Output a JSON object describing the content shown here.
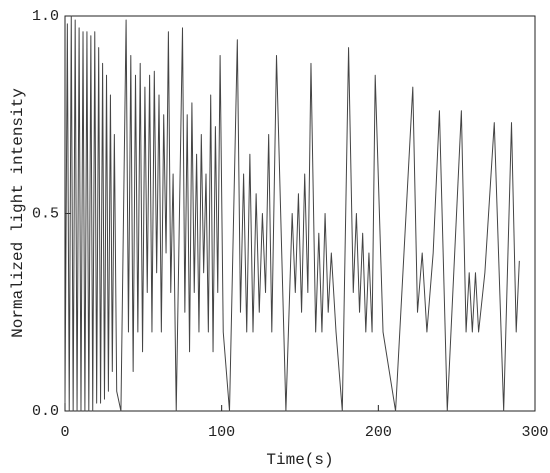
{
  "chart_data": {
    "type": "line",
    "x_label": "Time(s)",
    "y_label": "Normalized light intensity",
    "xlim": [
      0,
      300
    ],
    "xticks": [
      0,
      100,
      200,
      300
    ],
    "ylim": [
      0,
      1.0
    ],
    "yticks": [
      {
        "value": 0,
        "label": "0.0"
      },
      {
        "value": 0.5,
        "label": "0.5"
      },
      {
        "value": 1.0,
        "label": "1.0"
      }
    ],
    "x": [
      0,
      1.5,
      2.7,
      4,
      5.2,
      6.5,
      7.7,
      9,
      10.2,
      11.5,
      12.7,
      14,
      15.2,
      16.5,
      17.7,
      19,
      20.2,
      21.5,
      22.7,
      24,
      25.2,
      26.5,
      27.7,
      29,
      30.2,
      31.5,
      33,
      35.7,
      39,
      40.5,
      42,
      43.5,
      45,
      46.5,
      48,
      49.5,
      51,
      52.5,
      54,
      55.5,
      57,
      58.5,
      60,
      61.5,
      63,
      64.5,
      66,
      67.5,
      69,
      71,
      75,
      76.5,
      78,
      79.5,
      81,
      82.5,
      84,
      85.5,
      87,
      88.5,
      90,
      91.5,
      93,
      94.5,
      96,
      97.5,
      99,
      101,
      105,
      110,
      112,
      114,
      116,
      118,
      120,
      122,
      124,
      126,
      128,
      130,
      132,
      135,
      141,
      145,
      147,
      149,
      151,
      153,
      155,
      157,
      160,
      162,
      164,
      166,
      168,
      170,
      173,
      177,
      181,
      184,
      186,
      188,
      190,
      192,
      194,
      196,
      198,
      203,
      211,
      222,
      225,
      228,
      231,
      235,
      239,
      244,
      253,
      256,
      258,
      260,
      262,
      264,
      268,
      274,
      280,
      285,
      288,
      290
    ],
    "series": [
      {
        "color": "#444444",
        "values": [
          0.02,
          0.98,
          0,
          1.0,
          0,
          0.99,
          0,
          0.97,
          0,
          0.96,
          0,
          0.96,
          0,
          0.95,
          0,
          0.96,
          0.02,
          0.92,
          0.02,
          0.88,
          0.03,
          0.85,
          0.05,
          0.8,
          0.1,
          0.7,
          0.05,
          0,
          0.99,
          0.2,
          0.9,
          0.1,
          0.85,
          0.2,
          0.88,
          0.15,
          0.82,
          0.3,
          0.85,
          0.2,
          0.86,
          0.35,
          0.8,
          0.2,
          0.75,
          0.4,
          0.96,
          0.3,
          0.6,
          0,
          0.97,
          0.25,
          0.75,
          0.15,
          0.78,
          0.3,
          0.65,
          0.2,
          0.7,
          0.35,
          0.6,
          0.2,
          0.8,
          0.15,
          0.72,
          0.3,
          0.9,
          0.2,
          0,
          0.94,
          0.25,
          0.6,
          0.2,
          0.65,
          0.2,
          0.55,
          0.25,
          0.5,
          0.3,
          0.7,
          0.2,
          0.9,
          0,
          0.5,
          0.3,
          0.55,
          0.25,
          0.6,
          0.3,
          0.88,
          0.2,
          0.45,
          0.2,
          0.5,
          0.25,
          0.4,
          0.2,
          0,
          0.92,
          0.3,
          0.5,
          0.25,
          0.45,
          0.2,
          0.4,
          0.2,
          0.85,
          0.2,
          0,
          0.82,
          0.25,
          0.4,
          0.2,
          0.4,
          0.76,
          0,
          0.76,
          0.2,
          0.35,
          0.2,
          0.35,
          0.2,
          0.35,
          0.73,
          0,
          0.73,
          0.2,
          0.38
        ]
      }
    ]
  }
}
